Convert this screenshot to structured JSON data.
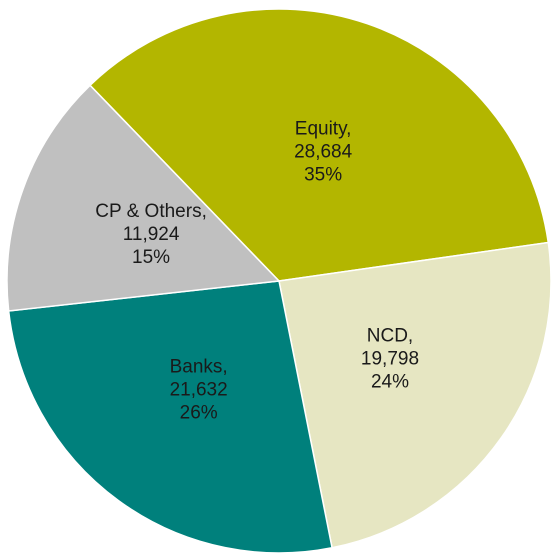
{
  "chart_data": {
    "type": "pie",
    "categories": [
      "Equity,",
      "NCD,",
      "Banks,",
      "CP & Others,"
    ],
    "values": [
      28684,
      19798,
      21632,
      11924
    ],
    "value_labels": [
      "28,684",
      "19,798",
      "21,632",
      "11,924"
    ],
    "percents": [
      35,
      24,
      26,
      15
    ],
    "percent_labels": [
      "35%",
      "24%",
      "26%",
      "15%"
    ],
    "colors": [
      "#b3b600",
      "#e6e6c2",
      "#00807c",
      "#c0c0c0"
    ]
  }
}
